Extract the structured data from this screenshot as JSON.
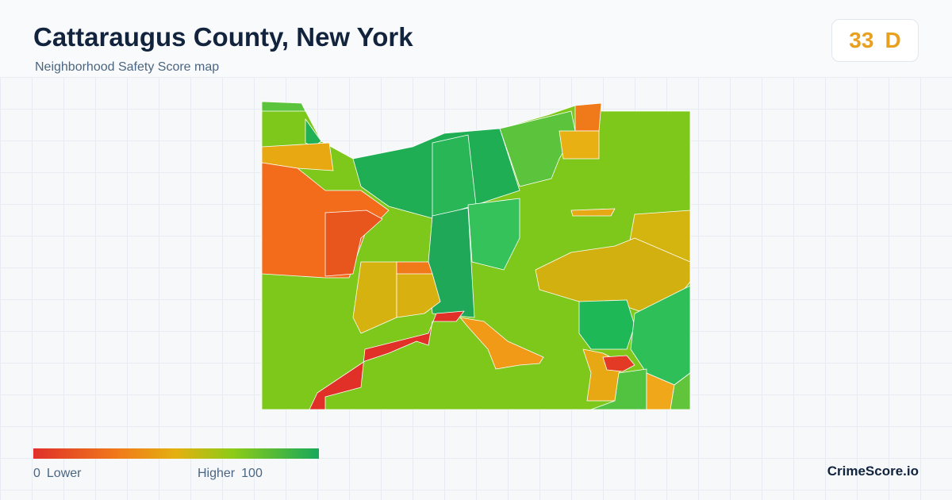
{
  "header": {
    "title": "Cattaraugus County, New York",
    "subtitle": "Neighborhood Safety Score map"
  },
  "score": {
    "value": "33",
    "grade": "D"
  },
  "legend": {
    "min": "0",
    "min_label": "Lower",
    "max_label": "Higher",
    "max": "100"
  },
  "brand": "CrimeScore.io"
}
